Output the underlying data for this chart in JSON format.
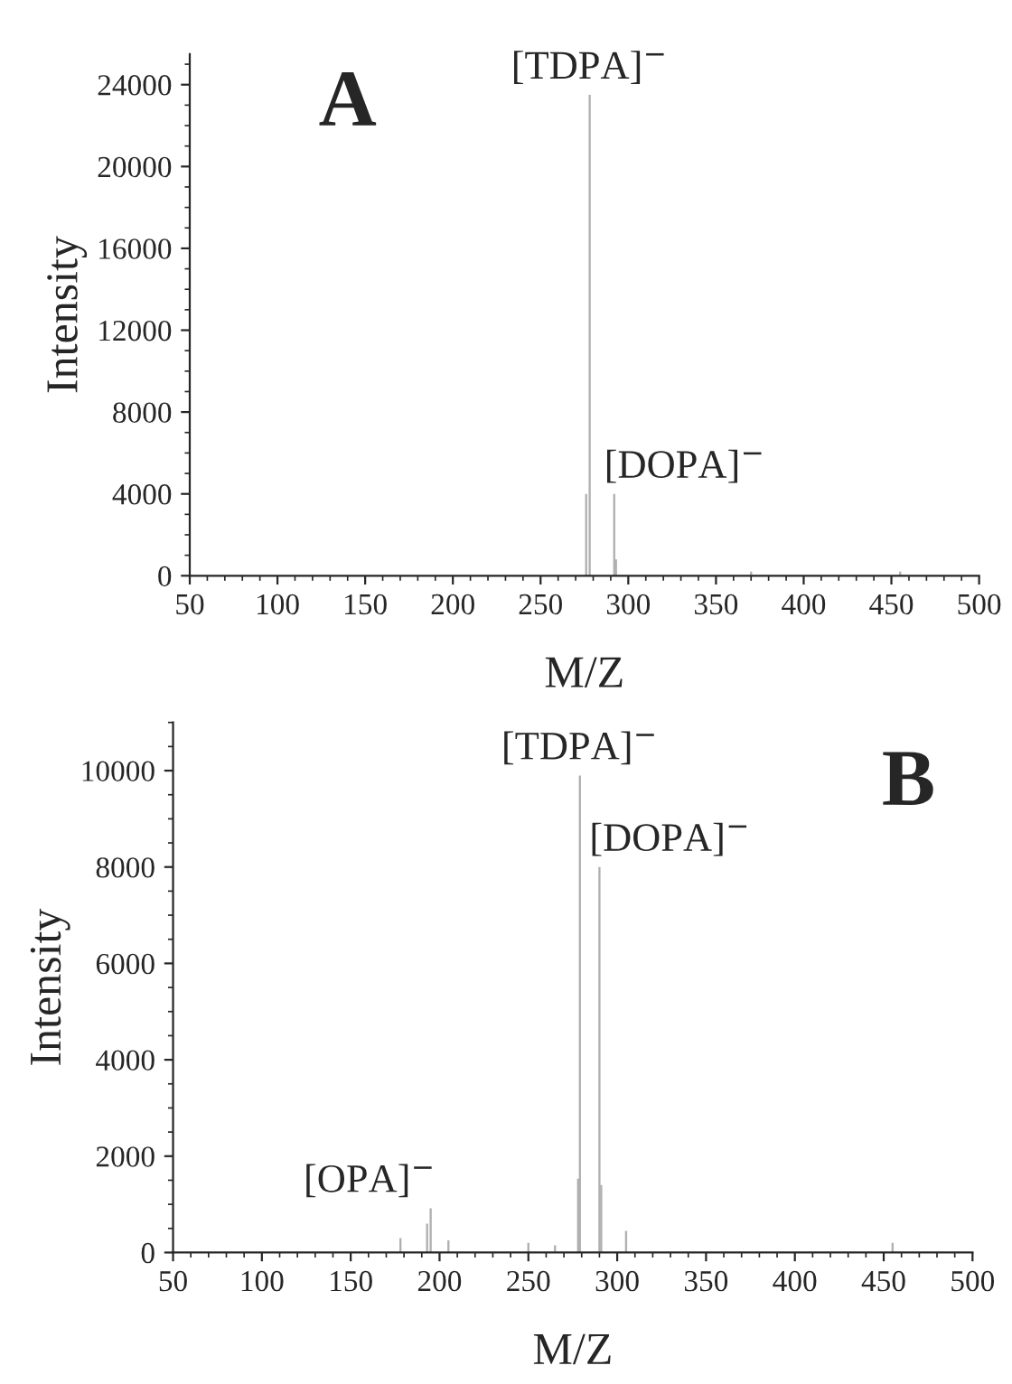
{
  "chart_data": [
    {
      "type": "bar",
      "xlabel": "M/Z",
      "ylabel": "Intensity",
      "x": [
        276,
        278,
        292,
        293,
        370,
        455
      ],
      "values": [
        4000,
        23500,
        4000,
        800,
        200,
        200
      ],
      "color": "#b0b0b0",
      "xlim": [
        50,
        500
      ],
      "xticks": [
        50,
        100,
        150,
        200,
        250,
        300,
        350,
        400,
        450,
        500
      ],
      "ylim": [
        0,
        25500
      ],
      "yticks": [
        0,
        4000,
        8000,
        12000,
        16000,
        20000,
        24000
      ],
      "annotations": [
        "A",
        {
          "text": "[TDPA]$^{−}$",
          "x": 278,
          "y": 23500
        },
        {
          "text": "[DOPA]$^{−}$",
          "x": 292,
          "y": 4000
        }
      ]
    },
    {
      "type": "bar",
      "xlabel": "M/Z",
      "ylabel": "Intensity",
      "x": [
        178,
        193,
        195,
        205,
        250,
        265,
        278,
        279,
        290,
        291,
        305,
        455
      ],
      "values": [
        300,
        600,
        920,
        250,
        200,
        150,
        1530,
        9900,
        8000,
        1400,
        450,
        200
      ],
      "color": "#b0b0b0",
      "xlim": [
        50,
        500
      ],
      "xticks": [
        50,
        100,
        150,
        200,
        250,
        300,
        350,
        400,
        450,
        500
      ],
      "ylim": [
        0,
        11000
      ],
      "yticks": [
        0,
        2000,
        4000,
        6000,
        8000,
        10000
      ],
      "annotations": [
        "B",
        {
          "text": "[OPA]$^{−}$",
          "x": 195,
          "y": 920
        },
        {
          "text": "[TDPA]$^{−}$",
          "x": 279,
          "y": 9900
        },
        {
          "text": "[DOPA]$^{−}$",
          "x": 290,
          "y": 8000
        }
      ]
    }
  ]
}
